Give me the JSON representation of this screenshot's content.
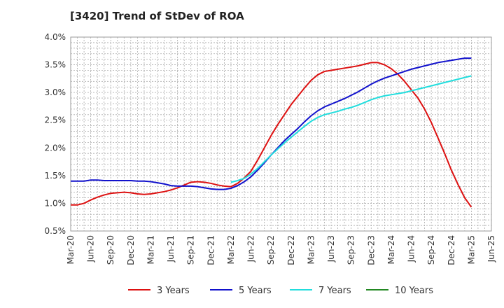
{
  "chart_data": {
    "type": "line",
    "title": "[3420]  Trend of StDev of ROA",
    "xlabel": "",
    "ylabel": "",
    "x_ticks": [
      "Mar-20",
      "Jun-20",
      "Sep-20",
      "Dec-20",
      "Mar-21",
      "Jun-21",
      "Sep-21",
      "Dec-21",
      "Mar-22",
      "Jun-22",
      "Sep-22",
      "Dec-22",
      "Mar-23",
      "Jun-23",
      "Sep-23",
      "Dec-23",
      "Mar-24",
      "Jun-24",
      "Sep-24",
      "Dec-24",
      "Mar-25",
      "Jun-25"
    ],
    "y_ticks": [
      "0.5%",
      "1.0%",
      "1.5%",
      "2.0%",
      "2.5%",
      "3.0%",
      "3.5%",
      "4.0%"
    ],
    "ylim": [
      0.5,
      4.0
    ],
    "grid": true,
    "legend_position": "bottom",
    "series": [
      {
        "name": "3 Years",
        "color": "#dd1111",
        "points": [
          [
            "Mar-20",
            0.97
          ],
          [
            "Apr-20",
            0.97
          ],
          [
            "May-20",
            1.0
          ],
          [
            "Jun-20",
            1.06
          ],
          [
            "Jul-20",
            1.11
          ],
          [
            "Aug-20",
            1.15
          ],
          [
            "Sep-20",
            1.18
          ],
          [
            "Oct-20",
            1.19
          ],
          [
            "Nov-20",
            1.2
          ],
          [
            "Dec-20",
            1.19
          ],
          [
            "Jan-21",
            1.17
          ],
          [
            "Feb-21",
            1.16
          ],
          [
            "Mar-21",
            1.17
          ],
          [
            "Apr-21",
            1.19
          ],
          [
            "May-21",
            1.21
          ],
          [
            "Jun-21",
            1.24
          ],
          [
            "Jul-21",
            1.28
          ],
          [
            "Aug-21",
            1.33
          ],
          [
            "Sep-21",
            1.38
          ],
          [
            "Oct-21",
            1.39
          ],
          [
            "Nov-21",
            1.38
          ],
          [
            "Dec-21",
            1.36
          ],
          [
            "Jan-22",
            1.33
          ],
          [
            "Feb-22",
            1.31
          ],
          [
            "Mar-22",
            1.3
          ],
          [
            "Apr-22",
            1.36
          ],
          [
            "May-22",
            1.46
          ],
          [
            "Jun-22",
            1.58
          ],
          [
            "Jul-22",
            1.78
          ],
          [
            "Aug-22",
            2.0
          ],
          [
            "Sep-22",
            2.22
          ],
          [
            "Oct-22",
            2.42
          ],
          [
            "Nov-22",
            2.6
          ],
          [
            "Dec-22",
            2.78
          ],
          [
            "Jan-23",
            2.93
          ],
          [
            "Feb-23",
            3.08
          ],
          [
            "Mar-23",
            3.22
          ],
          [
            "Apr-23",
            3.32
          ],
          [
            "May-23",
            3.38
          ],
          [
            "Jun-23",
            3.4
          ],
          [
            "Jul-23",
            3.42
          ],
          [
            "Aug-23",
            3.44
          ],
          [
            "Sep-23",
            3.46
          ],
          [
            "Oct-23",
            3.48
          ],
          [
            "Nov-23",
            3.51
          ],
          [
            "Dec-23",
            3.54
          ],
          [
            "Jan-24",
            3.54
          ],
          [
            "Feb-24",
            3.5
          ],
          [
            "Mar-24",
            3.43
          ],
          [
            "Apr-24",
            3.33
          ],
          [
            "May-24",
            3.2
          ],
          [
            "Jun-24",
            3.05
          ],
          [
            "Jul-24",
            2.9
          ],
          [
            "Aug-24",
            2.7
          ],
          [
            "Sep-24",
            2.46
          ],
          [
            "Oct-24",
            2.18
          ],
          [
            "Nov-24",
            1.9
          ],
          [
            "Dec-24",
            1.6
          ],
          [
            "Jan-25",
            1.34
          ],
          [
            "Feb-25",
            1.1
          ],
          [
            "Mar-25",
            0.93
          ]
        ]
      },
      {
        "name": "5 Years",
        "color": "#1111cc",
        "points": [
          [
            "Mar-20",
            1.4
          ],
          [
            "Apr-20",
            1.4
          ],
          [
            "May-20",
            1.4
          ],
          [
            "Jun-20",
            1.42
          ],
          [
            "Jul-20",
            1.42
          ],
          [
            "Aug-20",
            1.41
          ],
          [
            "Sep-20",
            1.41
          ],
          [
            "Oct-20",
            1.41
          ],
          [
            "Nov-20",
            1.41
          ],
          [
            "Dec-20",
            1.41
          ],
          [
            "Jan-21",
            1.4
          ],
          [
            "Feb-21",
            1.4
          ],
          [
            "Mar-21",
            1.39
          ],
          [
            "Apr-21",
            1.37
          ],
          [
            "May-21",
            1.35
          ],
          [
            "Jun-21",
            1.32
          ],
          [
            "Jul-21",
            1.31
          ],
          [
            "Aug-21",
            1.31
          ],
          [
            "Sep-21",
            1.31
          ],
          [
            "Oct-21",
            1.3
          ],
          [
            "Nov-21",
            1.28
          ],
          [
            "Dec-21",
            1.26
          ],
          [
            "Jan-22",
            1.25
          ],
          [
            "Feb-22",
            1.25
          ],
          [
            "Mar-22",
            1.27
          ],
          [
            "Apr-22",
            1.32
          ],
          [
            "May-22",
            1.39
          ],
          [
            "Jun-22",
            1.48
          ],
          [
            "Jul-22",
            1.6
          ],
          [
            "Aug-22",
            1.73
          ],
          [
            "Sep-22",
            1.87
          ],
          [
            "Oct-22",
            2.0
          ],
          [
            "Nov-22",
            2.13
          ],
          [
            "Dec-22",
            2.24
          ],
          [
            "Jan-23",
            2.35
          ],
          [
            "Feb-23",
            2.47
          ],
          [
            "Mar-23",
            2.58
          ],
          [
            "Apr-23",
            2.67
          ],
          [
            "May-23",
            2.74
          ],
          [
            "Jun-23",
            2.79
          ],
          [
            "Jul-23",
            2.84
          ],
          [
            "Aug-23",
            2.89
          ],
          [
            "Sep-23",
            2.95
          ],
          [
            "Oct-23",
            3.01
          ],
          [
            "Nov-23",
            3.08
          ],
          [
            "Dec-23",
            3.15
          ],
          [
            "Jan-24",
            3.21
          ],
          [
            "Feb-24",
            3.26
          ],
          [
            "Mar-24",
            3.3
          ],
          [
            "Apr-24",
            3.34
          ],
          [
            "May-24",
            3.38
          ],
          [
            "Jun-24",
            3.42
          ],
          [
            "Jul-24",
            3.45
          ],
          [
            "Aug-24",
            3.48
          ],
          [
            "Sep-24",
            3.51
          ],
          [
            "Oct-24",
            3.54
          ],
          [
            "Nov-24",
            3.56
          ],
          [
            "Dec-24",
            3.58
          ],
          [
            "Jan-25",
            3.6
          ],
          [
            "Feb-25",
            3.62
          ],
          [
            "Mar-25",
            3.62
          ]
        ]
      },
      {
        "name": "7 Years",
        "color": "#22dddd",
        "points": [
          [
            "Mar-22",
            1.38
          ],
          [
            "Apr-22",
            1.41
          ],
          [
            "May-22",
            1.45
          ],
          [
            "Jun-22",
            1.53
          ],
          [
            "Jul-22",
            1.63
          ],
          [
            "Aug-22",
            1.75
          ],
          [
            "Sep-22",
            1.87
          ],
          [
            "Oct-22",
            1.98
          ],
          [
            "Nov-22",
            2.09
          ],
          [
            "Dec-22",
            2.19
          ],
          [
            "Jan-23",
            2.29
          ],
          [
            "Feb-23",
            2.39
          ],
          [
            "Mar-23",
            2.48
          ],
          [
            "Apr-23",
            2.55
          ],
          [
            "May-23",
            2.6
          ],
          [
            "Jun-23",
            2.63
          ],
          [
            "Jul-23",
            2.66
          ],
          [
            "Aug-23",
            2.7
          ],
          [
            "Sep-23",
            2.73
          ],
          [
            "Oct-23",
            2.77
          ],
          [
            "Nov-23",
            2.82
          ],
          [
            "Dec-23",
            2.87
          ],
          [
            "Jan-24",
            2.91
          ],
          [
            "Feb-24",
            2.94
          ],
          [
            "Mar-24",
            2.96
          ],
          [
            "Apr-24",
            2.98
          ],
          [
            "May-24",
            3.0
          ],
          [
            "Jun-24",
            3.03
          ],
          [
            "Jul-24",
            3.06
          ],
          [
            "Aug-24",
            3.09
          ],
          [
            "Sep-24",
            3.12
          ],
          [
            "Oct-24",
            3.15
          ],
          [
            "Nov-24",
            3.18
          ],
          [
            "Dec-24",
            3.21
          ],
          [
            "Jan-25",
            3.24
          ],
          [
            "Feb-25",
            3.27
          ],
          [
            "Mar-25",
            3.3
          ]
        ]
      },
      {
        "name": "10 Years",
        "color": "#228822",
        "points": []
      }
    ]
  }
}
